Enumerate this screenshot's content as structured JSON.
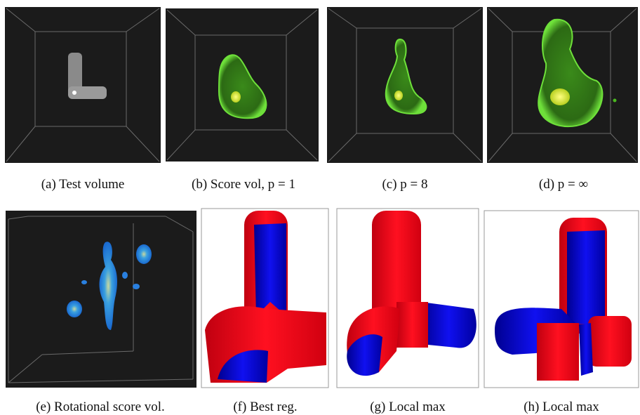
{
  "panels": [
    {
      "caption": "(a) Test volume"
    },
    {
      "caption": "(b) Score vol, p = 1"
    },
    {
      "caption": "(c) p = 8"
    },
    {
      "caption": "(d) p = ∞"
    },
    {
      "caption": "(e) Rotational score vol."
    },
    {
      "caption": "(f) Best reg."
    },
    {
      "caption": "(g) Local max"
    },
    {
      "caption": "(h) Local max"
    }
  ]
}
